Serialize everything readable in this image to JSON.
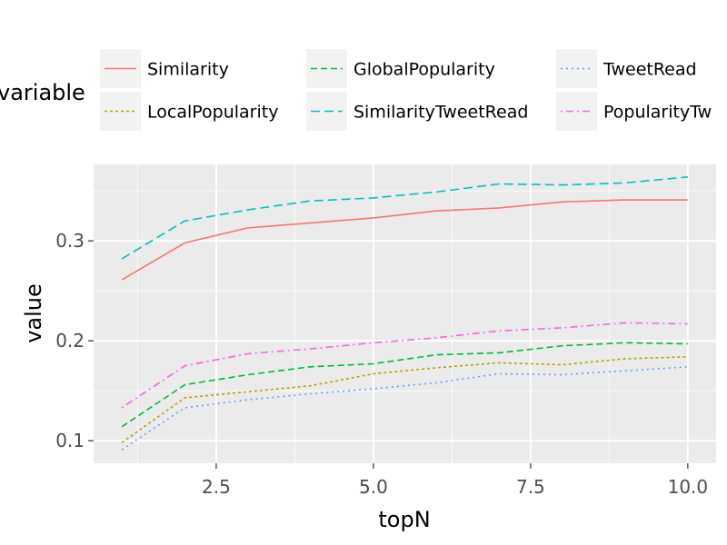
{
  "chart_data": {
    "type": "line",
    "xlabel": "topN",
    "ylabel": "value",
    "xlim": [
      0.55,
      10.45
    ],
    "ylim": [
      0.0775,
      0.3765
    ],
    "x_ticks": [
      2.5,
      5.0,
      7.5,
      10.0
    ],
    "x_tick_labels": [
      "2.5",
      "5.0",
      "7.5",
      "10.0"
    ],
    "y_ticks": [
      0.1,
      0.2,
      0.3
    ],
    "y_tick_labels": [
      "0.1",
      "0.2",
      "0.3"
    ],
    "grid": true,
    "panel_background": "#ebebeb",
    "legend": {
      "title": "variable",
      "position": "top",
      "columns": 3,
      "key_background": "#f2f2f2"
    },
    "x": [
      1,
      2,
      3,
      4,
      5,
      6,
      7,
      8,
      9,
      10
    ],
    "series": [
      {
        "name": "Similarity",
        "color": "#F8766D",
        "dash": "solid",
        "values": [
          0.261,
          0.298,
          0.313,
          0.318,
          0.323,
          0.33,
          0.333,
          0.339,
          0.341,
          0.341
        ]
      },
      {
        "name": "LocalPopularity",
        "color": "#B79F00",
        "dash": "dotted",
        "values": [
          0.098,
          0.143,
          0.149,
          0.155,
          0.167,
          0.173,
          0.178,
          0.176,
          0.182,
          0.184
        ]
      },
      {
        "name": "GlobalPopularity",
        "color": "#00BA38",
        "dash": "dashed",
        "values": [
          0.114,
          0.156,
          0.166,
          0.174,
          0.177,
          0.186,
          0.188,
          0.195,
          0.198,
          0.197
        ]
      },
      {
        "name": "SimilarityTweetRead",
        "color": "#00BFC4",
        "dash": "longdash",
        "values": [
          0.282,
          0.32,
          0.331,
          0.34,
          0.343,
          0.349,
          0.357,
          0.356,
          0.358,
          0.364
        ]
      },
      {
        "name": "TweetRead",
        "color": "#619CFF",
        "dash": "dotted-fine",
        "values": [
          0.091,
          0.133,
          0.141,
          0.147,
          0.152,
          0.158,
          0.167,
          0.166,
          0.17,
          0.174
        ]
      },
      {
        "name": "PopularityTw",
        "color": "#F564E3",
        "dash": "dotdash",
        "values": [
          0.133,
          0.175,
          0.187,
          0.192,
          0.198,
          0.203,
          0.21,
          0.213,
          0.218,
          0.217
        ]
      }
    ]
  }
}
